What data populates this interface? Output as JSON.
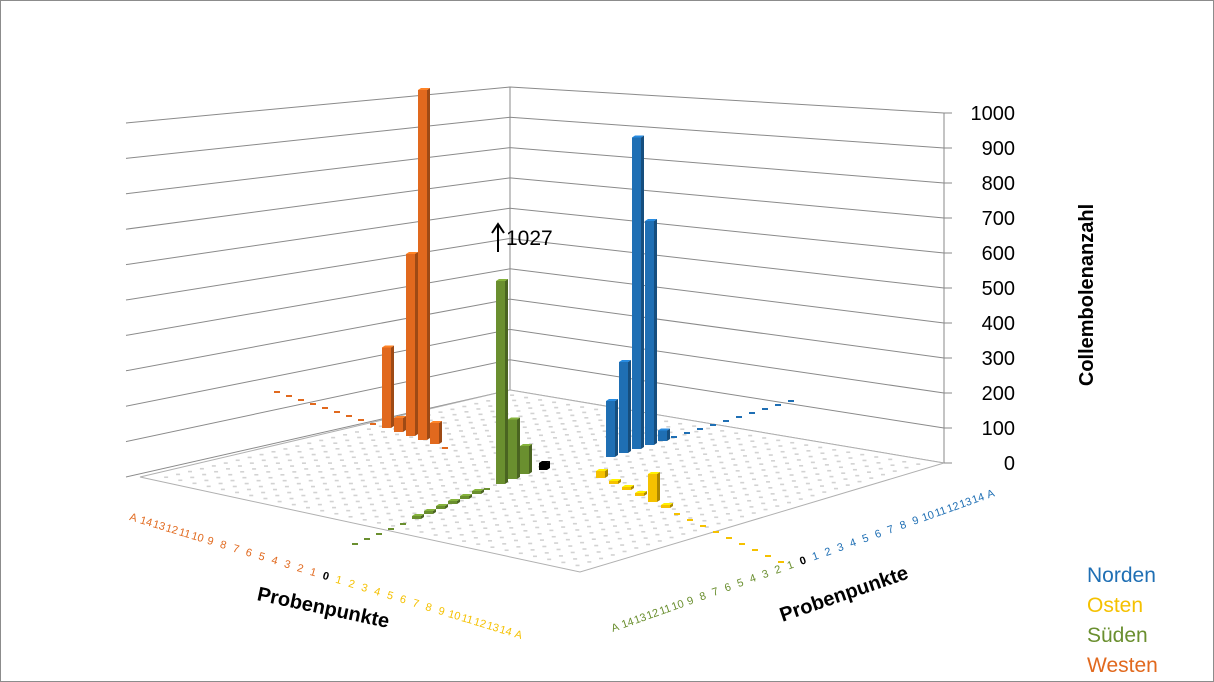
{
  "chart_data": {
    "type": "bar",
    "style": "3d-column",
    "zlabel": "Collembolenanzahl",
    "zlim": [
      0,
      1000
    ],
    "z_ticks": [
      "0",
      "100",
      "200",
      "300",
      "400",
      "500",
      "600",
      "700",
      "800",
      "900",
      "1000"
    ],
    "x_axis_front_left": {
      "label": "Probenpunkte",
      "west_labels": [
        "A",
        "14",
        "13",
        "12",
        "11",
        "10",
        "9",
        "8",
        "7",
        "6",
        "5",
        "4",
        "3",
        "2",
        "1"
      ],
      "center_label": "0",
      "east_labels": [
        "1",
        "2",
        "3",
        "4",
        "5",
        "6",
        "7",
        "8",
        "9",
        "10",
        "11",
        "12",
        "13",
        "14",
        "A"
      ]
    },
    "y_axis_front_right": {
      "label": "Probenpunkte",
      "south_labels": [
        "A",
        "14",
        "13",
        "12",
        "11",
        "10",
        "9",
        "8",
        "7",
        "6",
        "5",
        "4",
        "3",
        "2",
        "1"
      ],
      "center_label": "0",
      "north_labels": [
        "1",
        "2",
        "3",
        "4",
        "5",
        "6",
        "7",
        "8",
        "9",
        "10",
        "11",
        "12",
        "13",
        "14",
        "A"
      ]
    },
    "annotation": "1027",
    "series": [
      {
        "name": "Norden",
        "color": "#1f6fb4",
        "points": [
          "1",
          "2",
          "3",
          "4",
          "5",
          "6",
          "7",
          "8",
          "9",
          "10",
          "11",
          "12",
          "13",
          "14",
          "A"
        ],
        "values": [
          160,
          260,
          890,
          640,
          30,
          0,
          0,
          0,
          0,
          0,
          0,
          0,
          0,
          0,
          0
        ]
      },
      {
        "name": "Osten",
        "color": "#f5c100",
        "points": [
          "1",
          "2",
          "3",
          "4",
          "5",
          "6",
          "7",
          "8",
          "9",
          "10",
          "11",
          "12",
          "13",
          "14",
          "A"
        ],
        "values": [
          20,
          5,
          5,
          5,
          80,
          5,
          0,
          0,
          0,
          0,
          0,
          0,
          0,
          0,
          0
        ]
      },
      {
        "name": "Süden",
        "color": "#6a8f2f",
        "points": [
          "1",
          "2",
          "3",
          "4",
          "5",
          "6",
          "7",
          "8",
          "9",
          "10",
          "11",
          "12",
          "13",
          "14",
          "A"
        ],
        "values": [
          80,
          170,
          580,
          0,
          5,
          5,
          5,
          5,
          5,
          5,
          0,
          0,
          0,
          0,
          0
        ]
      },
      {
        "name": "Westen",
        "color": "#e1691e",
        "points": [
          "1",
          "2",
          "3",
          "4",
          "5",
          "6",
          "7",
          "8",
          "9",
          "10",
          "11",
          "12",
          "13",
          "14",
          "A"
        ],
        "values": [
          0,
          60,
          1027,
          520,
          40,
          230,
          0,
          0,
          0,
          0,
          0,
          0,
          0,
          0,
          0
        ]
      }
    ],
    "center": {
      "label": "0",
      "value": 20,
      "color": "#000000"
    },
    "legend": {
      "position": "bottom-right",
      "entries": [
        "Norden",
        "Osten",
        "Süden",
        "Westen"
      ]
    }
  }
}
